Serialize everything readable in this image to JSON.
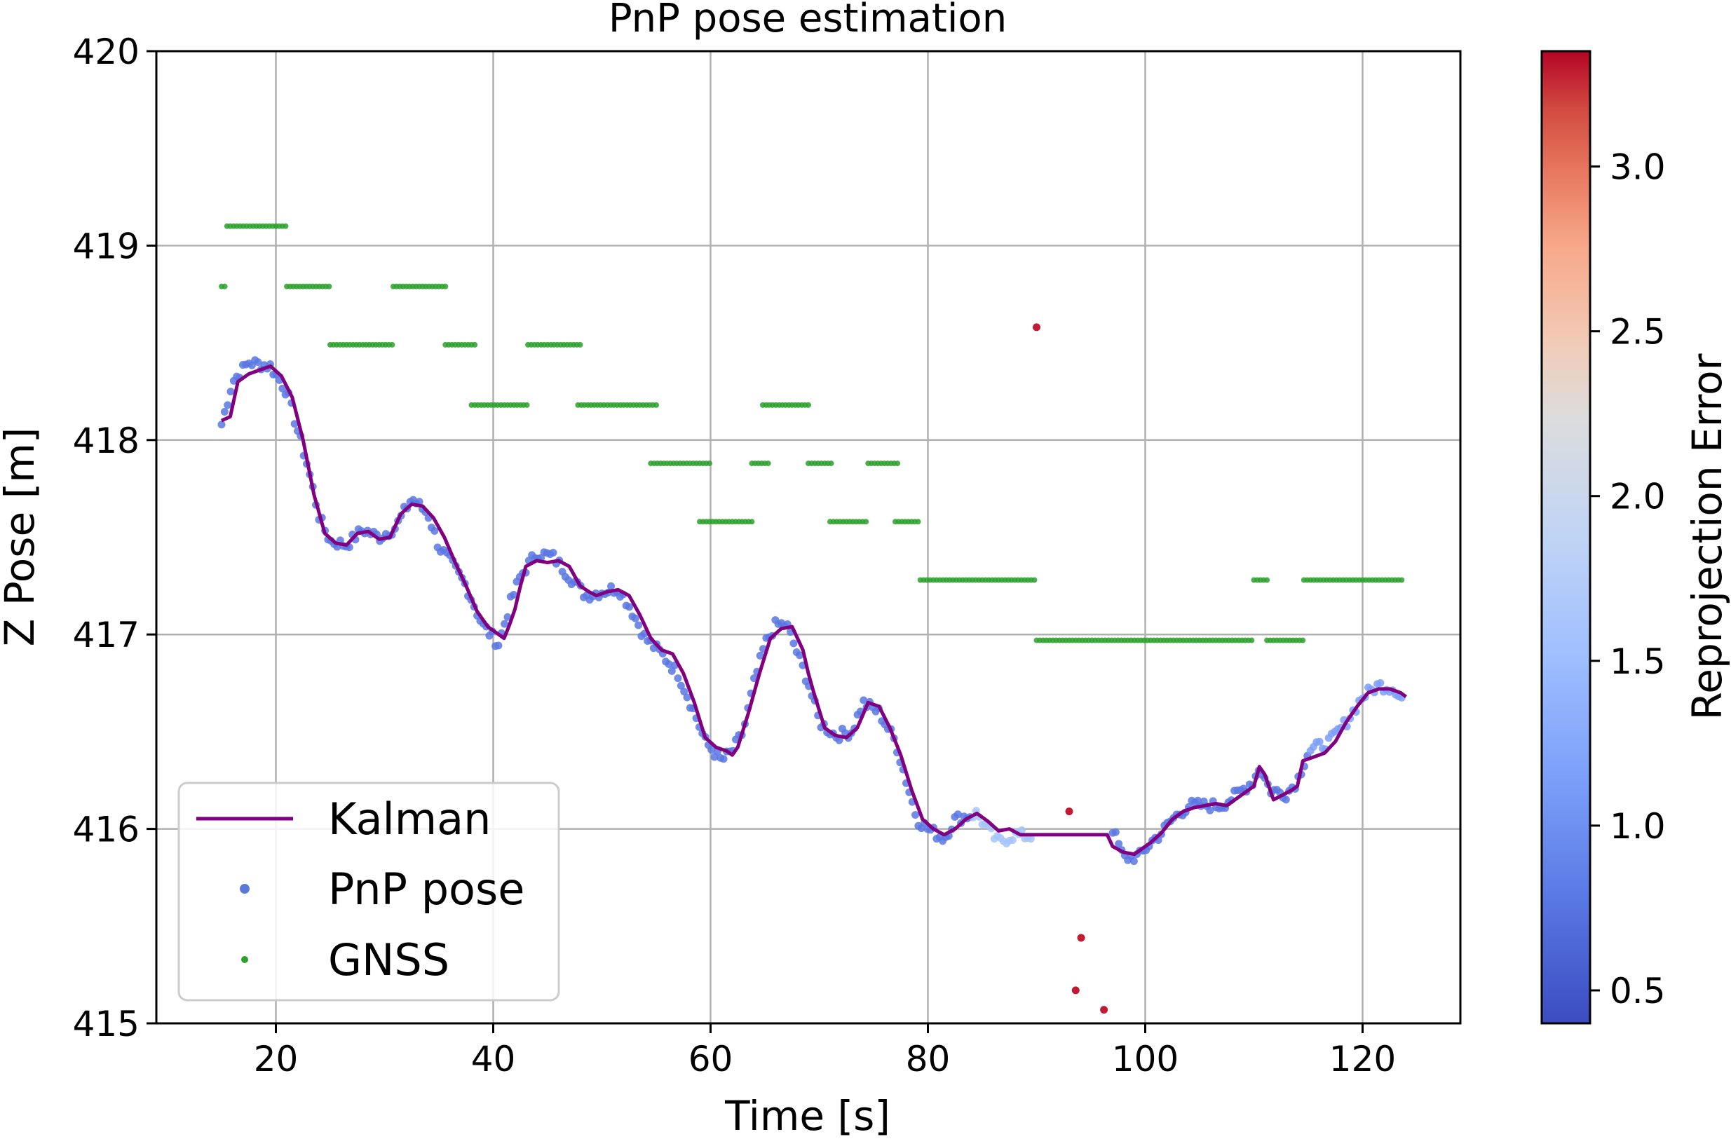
{
  "chart_data": {
    "type": "scatter",
    "title": "PnP pose estimation",
    "xlabel": "Time [s]",
    "ylabel": "Z Pose [m]",
    "xlim": [
      9,
      129
    ],
    "ylim": [
      415,
      420
    ],
    "xticks": [
      20,
      40,
      60,
      80,
      100,
      120
    ],
    "yticks": [
      415,
      416,
      417,
      418,
      419,
      420
    ],
    "grid": true,
    "legend_position": "lower-left",
    "legend": [
      {
        "label": "Kalman",
        "kind": "line",
        "color": "#800080"
      },
      {
        "label": "PnP pose",
        "kind": "marker",
        "color": "#5a78d8"
      },
      {
        "label": "GNSS",
        "kind": "marker-small",
        "color": "#2ca02c"
      }
    ],
    "colorbar": {
      "label": "Reprojection Error",
      "range": [
        0.4,
        3.35
      ],
      "ticks": [
        0.5,
        1.0,
        1.5,
        2.0,
        2.5,
        3.0
      ],
      "tick_labels": [
        "0.5",
        "1.0",
        "1.5",
        "2.0",
        "2.5",
        "3.0"
      ],
      "colormap": "coolwarm"
    },
    "series": [
      {
        "name": "Kalman",
        "kind": "line",
        "color": "#800080",
        "points": [
          [
            15.0,
            418.1
          ],
          [
            15.8,
            418.12
          ],
          [
            16.5,
            418.3
          ],
          [
            17.5,
            418.34
          ],
          [
            18.5,
            418.36
          ],
          [
            19.5,
            418.38
          ],
          [
            20.5,
            418.33
          ],
          [
            21.5,
            418.22
          ],
          [
            22.5,
            418.0
          ],
          [
            23.5,
            417.72
          ],
          [
            24.5,
            417.52
          ],
          [
            25.5,
            417.47
          ],
          [
            26.5,
            417.46
          ],
          [
            27.5,
            417.52
          ],
          [
            28.5,
            417.53
          ],
          [
            29.5,
            417.49
          ],
          [
            30.5,
            417.5
          ],
          [
            31.5,
            417.62
          ],
          [
            32.5,
            417.67
          ],
          [
            33.5,
            417.66
          ],
          [
            34.5,
            417.6
          ],
          [
            35.5,
            417.5
          ],
          [
            36.5,
            417.37
          ],
          [
            37.5,
            417.25
          ],
          [
            38.5,
            417.12
          ],
          [
            39.5,
            417.04
          ],
          [
            40.5,
            417.0
          ],
          [
            41.0,
            416.98
          ],
          [
            41.5,
            417.05
          ],
          [
            42.0,
            417.13
          ],
          [
            42.5,
            417.25
          ],
          [
            43.0,
            417.35
          ],
          [
            44.0,
            417.38
          ],
          [
            45.0,
            417.37
          ],
          [
            46.0,
            417.38
          ],
          [
            47.0,
            417.35
          ],
          [
            48.0,
            417.25
          ],
          [
            48.8,
            417.22
          ],
          [
            49.5,
            417.2
          ],
          [
            50.5,
            417.22
          ],
          [
            51.5,
            417.23
          ],
          [
            52.5,
            417.2
          ],
          [
            53.5,
            417.1
          ],
          [
            54.5,
            416.98
          ],
          [
            55.5,
            416.92
          ],
          [
            56.5,
            416.9
          ],
          [
            57.5,
            416.8
          ],
          [
            58.5,
            416.65
          ],
          [
            59.5,
            416.47
          ],
          [
            60.5,
            416.42
          ],
          [
            61.5,
            416.4
          ],
          [
            62.0,
            416.38
          ],
          [
            62.5,
            416.42
          ],
          [
            63.5,
            416.6
          ],
          [
            64.5,
            416.8
          ],
          [
            65.5,
            416.98
          ],
          [
            66.5,
            417.03
          ],
          [
            67.5,
            417.04
          ],
          [
            68.5,
            416.92
          ],
          [
            69.0,
            416.8
          ],
          [
            69.5,
            416.7
          ],
          [
            70.5,
            416.52
          ],
          [
            71.5,
            416.48
          ],
          [
            72.5,
            416.47
          ],
          [
            73.5,
            416.52
          ],
          [
            74.5,
            416.65
          ],
          [
            75.5,
            416.63
          ],
          [
            76.5,
            416.52
          ],
          [
            77.5,
            416.38
          ],
          [
            78.5,
            416.2
          ],
          [
            79.5,
            416.05
          ],
          [
            80.5,
            416.0
          ],
          [
            81.5,
            415.97
          ],
          [
            82.5,
            416.0
          ],
          [
            83.5,
            416.05
          ],
          [
            84.5,
            416.08
          ],
          [
            85.5,
            416.04
          ],
          [
            86.5,
            415.99
          ],
          [
            87.5,
            416.0
          ],
          [
            88.5,
            415.97
          ],
          [
            89.5,
            415.97
          ],
          [
            92.0,
            415.97
          ],
          [
            96.5,
            415.97
          ],
          [
            97.0,
            415.91
          ],
          [
            98.0,
            415.88
          ],
          [
            99.0,
            415.87
          ],
          [
            100.5,
            415.93
          ],
          [
            101.5,
            415.98
          ],
          [
            102.5,
            416.05
          ],
          [
            103.5,
            416.09
          ],
          [
            104.5,
            416.11
          ],
          [
            105.5,
            416.12
          ],
          [
            106.5,
            416.13
          ],
          [
            107.5,
            416.12
          ],
          [
            108.5,
            416.16
          ],
          [
            109.5,
            416.2
          ],
          [
            110.0,
            416.22
          ],
          [
            110.5,
            416.32
          ],
          [
            111.0,
            416.28
          ],
          [
            111.8,
            416.15
          ],
          [
            112.5,
            416.17
          ],
          [
            113.5,
            416.2
          ],
          [
            114.0,
            416.22
          ],
          [
            114.5,
            416.35
          ],
          [
            115.5,
            416.37
          ],
          [
            116.5,
            416.39
          ],
          [
            117.5,
            416.45
          ],
          [
            118.5,
            416.55
          ],
          [
            119.5,
            416.63
          ],
          [
            120.5,
            416.7
          ],
          [
            121.5,
            416.72
          ],
          [
            122.5,
            416.72
          ],
          [
            123.5,
            416.7
          ],
          [
            124.0,
            416.68
          ]
        ]
      },
      {
        "name": "PnP pose",
        "kind": "scatter",
        "color_by": "reprojection_error",
        "anchors": [
          [
            15,
            418.08
          ],
          [
            16,
            418.3
          ],
          [
            17.5,
            418.4
          ],
          [
            19.5,
            418.38
          ],
          [
            21,
            418.25
          ],
          [
            22,
            418.05
          ],
          [
            23,
            417.85
          ],
          [
            24,
            417.6
          ],
          [
            25,
            417.48
          ],
          [
            26.5,
            417.46
          ],
          [
            28,
            417.54
          ],
          [
            29.5,
            417.5
          ],
          [
            31,
            417.55
          ],
          [
            32.5,
            417.7
          ],
          [
            34,
            417.62
          ],
          [
            35,
            417.45
          ],
          [
            36,
            417.38
          ],
          [
            37.5,
            417.25
          ],
          [
            39,
            417.05
          ],
          [
            40.5,
            416.95
          ],
          [
            41.5,
            417.15
          ],
          [
            42.5,
            417.3
          ],
          [
            44,
            417.42
          ],
          [
            45.5,
            417.4
          ],
          [
            47,
            417.3
          ],
          [
            48.5,
            417.2
          ],
          [
            50,
            417.22
          ],
          [
            51.5,
            417.24
          ],
          [
            52.5,
            417.15
          ],
          [
            54,
            416.98
          ],
          [
            55.5,
            416.9
          ],
          [
            57,
            416.8
          ],
          [
            58.5,
            416.6
          ],
          [
            59.5,
            416.45
          ],
          [
            61,
            416.35
          ],
          [
            62,
            416.4
          ],
          [
            63,
            416.5
          ],
          [
            64,
            416.75
          ],
          [
            65,
            416.95
          ],
          [
            66,
            417.05
          ],
          [
            67,
            417.05
          ],
          [
            68,
            416.9
          ],
          [
            69,
            416.75
          ],
          [
            70,
            416.55
          ],
          [
            71.5,
            416.48
          ],
          [
            73,
            416.5
          ],
          [
            74,
            416.65
          ],
          [
            75.5,
            416.6
          ],
          [
            77,
            416.45
          ],
          [
            78,
            416.25
          ],
          [
            79,
            416.05
          ],
          [
            80,
            416.0
          ],
          [
            81.5,
            415.95
          ],
          [
            82.5,
            416.05
          ],
          [
            84.5,
            416.08
          ],
          [
            85.5,
            416.0
          ],
          [
            86.5,
            415.93
          ],
          [
            88,
            415.97
          ],
          [
            89.5,
            415.96
          ]
        ],
        "anchors_b": [
          [
            97,
            416.0
          ],
          [
            98,
            415.85
          ],
          [
            99.5,
            415.86
          ],
          [
            100.5,
            415.93
          ],
          [
            101.5,
            415.98
          ],
          [
            102.5,
            416.05
          ],
          [
            104,
            416.12
          ],
          [
            105.5,
            416.12
          ],
          [
            107,
            416.12
          ],
          [
            108.5,
            416.18
          ],
          [
            110,
            416.25
          ],
          [
            110.5,
            416.32
          ],
          [
            111.5,
            416.2
          ],
          [
            113,
            416.18
          ],
          [
            114,
            416.25
          ],
          [
            115,
            416.4
          ],
          [
            117,
            416.45
          ],
          [
            118.5,
            416.55
          ],
          [
            120,
            416.68
          ],
          [
            121.5,
            416.74
          ],
          [
            123,
            416.72
          ],
          [
            123.8,
            416.66
          ]
        ],
        "outliers": [
          {
            "x": 90.0,
            "y": 418.58,
            "error": 3.3
          },
          {
            "x": 93.0,
            "y": 416.09,
            "error": 3.3
          },
          {
            "x": 93.6,
            "y": 415.17,
            "error": 3.3
          },
          {
            "x": 94.1,
            "y": 415.44,
            "error": 3.3
          },
          {
            "x": 96.2,
            "y": 415.07,
            "error": 3.3
          }
        ]
      },
      {
        "name": "GNSS",
        "kind": "scatter",
        "color": "#2ca02c",
        "segments": [
          {
            "x0": 15.0,
            "x1": 15.3,
            "y": 418.79
          },
          {
            "x0": 15.5,
            "x1": 21.0,
            "y": 419.1
          },
          {
            "x0": 21.0,
            "x1": 25.0,
            "y": 418.79
          },
          {
            "x0": 25.0,
            "x1": 30.8,
            "y": 418.49
          },
          {
            "x0": 30.8,
            "x1": 35.6,
            "y": 418.79
          },
          {
            "x0": 35.6,
            "x1": 38.5,
            "y": 418.49
          },
          {
            "x0": 38.0,
            "x1": 43.2,
            "y": 418.18
          },
          {
            "x0": 43.2,
            "x1": 48.2,
            "y": 418.49
          },
          {
            "x0": 47.8,
            "x1": 55.0,
            "y": 418.18
          },
          {
            "x0": 54.5,
            "x1": 60.0,
            "y": 417.88
          },
          {
            "x0": 59.0,
            "x1": 63.8,
            "y": 417.58
          },
          {
            "x0": 63.8,
            "x1": 65.3,
            "y": 417.88
          },
          {
            "x0": 64.8,
            "x1": 69.0,
            "y": 418.18
          },
          {
            "x0": 69.0,
            "x1": 71.3,
            "y": 417.88
          },
          {
            "x0": 71.0,
            "x1": 74.5,
            "y": 417.58
          },
          {
            "x0": 74.5,
            "x1": 77.2,
            "y": 417.88
          },
          {
            "x0": 77.0,
            "x1": 79.3,
            "y": 417.58
          },
          {
            "x0": 79.3,
            "x1": 90.0,
            "y": 417.28
          },
          {
            "x0": 90.0,
            "x1": 110.0,
            "y": 416.97
          },
          {
            "x0": 110.0,
            "x1": 111.4,
            "y": 417.28
          },
          {
            "x0": 111.2,
            "x1": 114.6,
            "y": 416.97
          },
          {
            "x0": 114.6,
            "x1": 123.8,
            "y": 417.28
          }
        ]
      }
    ]
  }
}
